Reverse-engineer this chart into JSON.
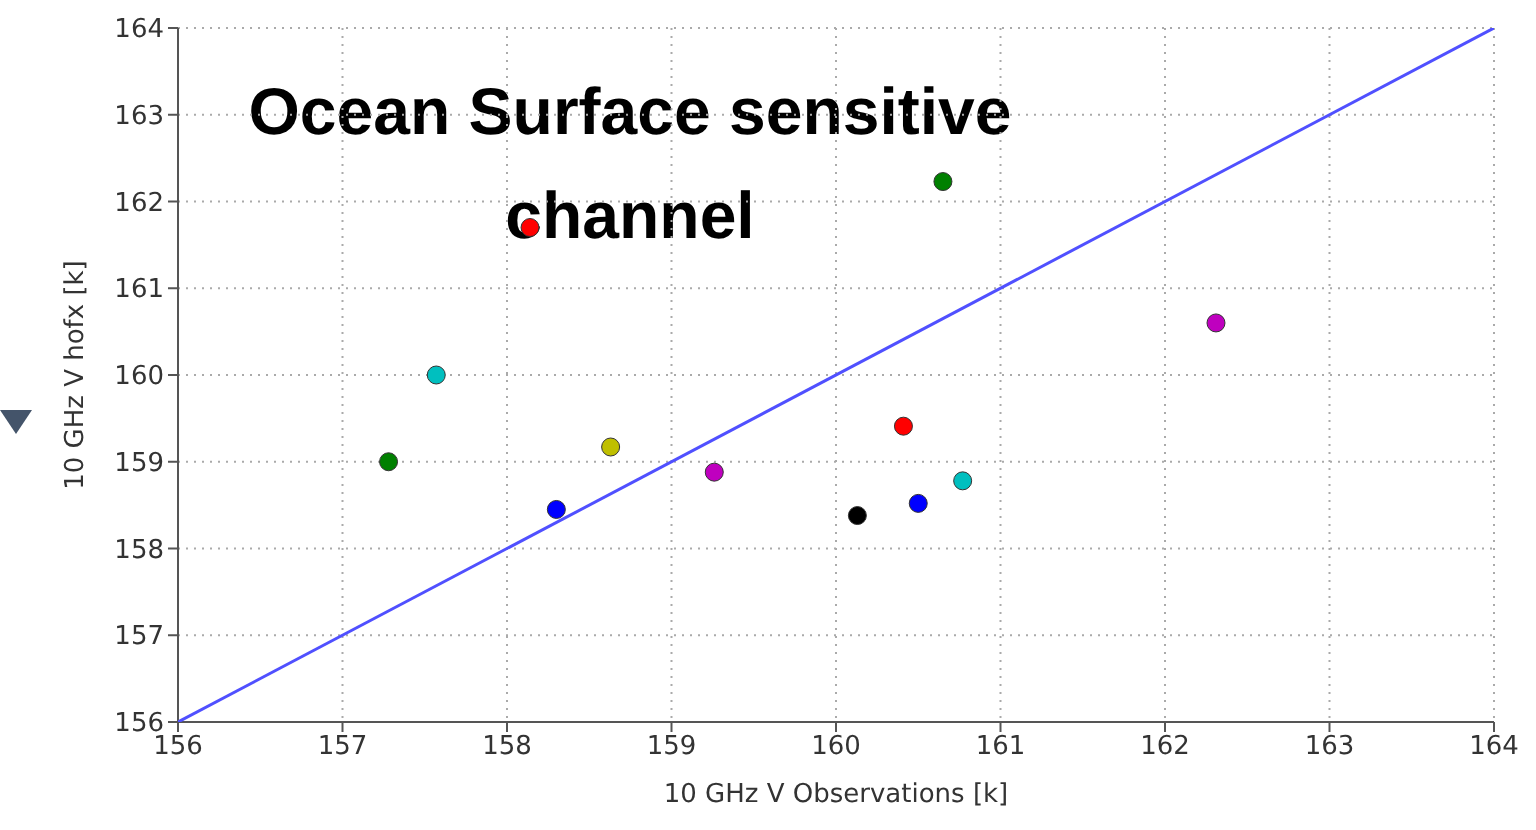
{
  "chart_data": {
    "type": "scatter",
    "title": "Ocean Surface sensitive channel",
    "xlabel": "10 GHz V Observations [k]",
    "ylabel": "10 GHz V hofx [k]",
    "xlim": [
      156,
      164
    ],
    "ylim": [
      156,
      164
    ],
    "xticks": [
      156,
      157,
      158,
      159,
      160,
      161,
      162,
      163,
      164
    ],
    "yticks": [
      156,
      157,
      158,
      159,
      160,
      161,
      162,
      163,
      164
    ],
    "grid": true,
    "series": [
      {
        "marker": "circle",
        "x": [
          157.28,
          157.57,
          158.14,
          158.3,
          158.63,
          159.26,
          160.13,
          160.5,
          160.41,
          160.77,
          160.65,
          162.31
        ],
        "values": [
          159.0,
          160.0,
          161.7,
          158.45,
          159.17,
          158.88,
          158.38,
          158.52,
          159.41,
          158.78,
          162.23,
          160.6
        ],
        "colors": [
          "#008000",
          "#00bfbf",
          "#ff0000",
          "#0000ff",
          "#bfbf00",
          "#bf00bf",
          "#000000",
          "#0000ff",
          "#ff0000",
          "#00bfbf",
          "#008000",
          "#bf00bf"
        ]
      },
      {
        "type": "line",
        "x": [
          156,
          164
        ],
        "values": [
          156,
          164
        ],
        "color": "#5050ff",
        "line_style": "solid"
      }
    ]
  }
}
